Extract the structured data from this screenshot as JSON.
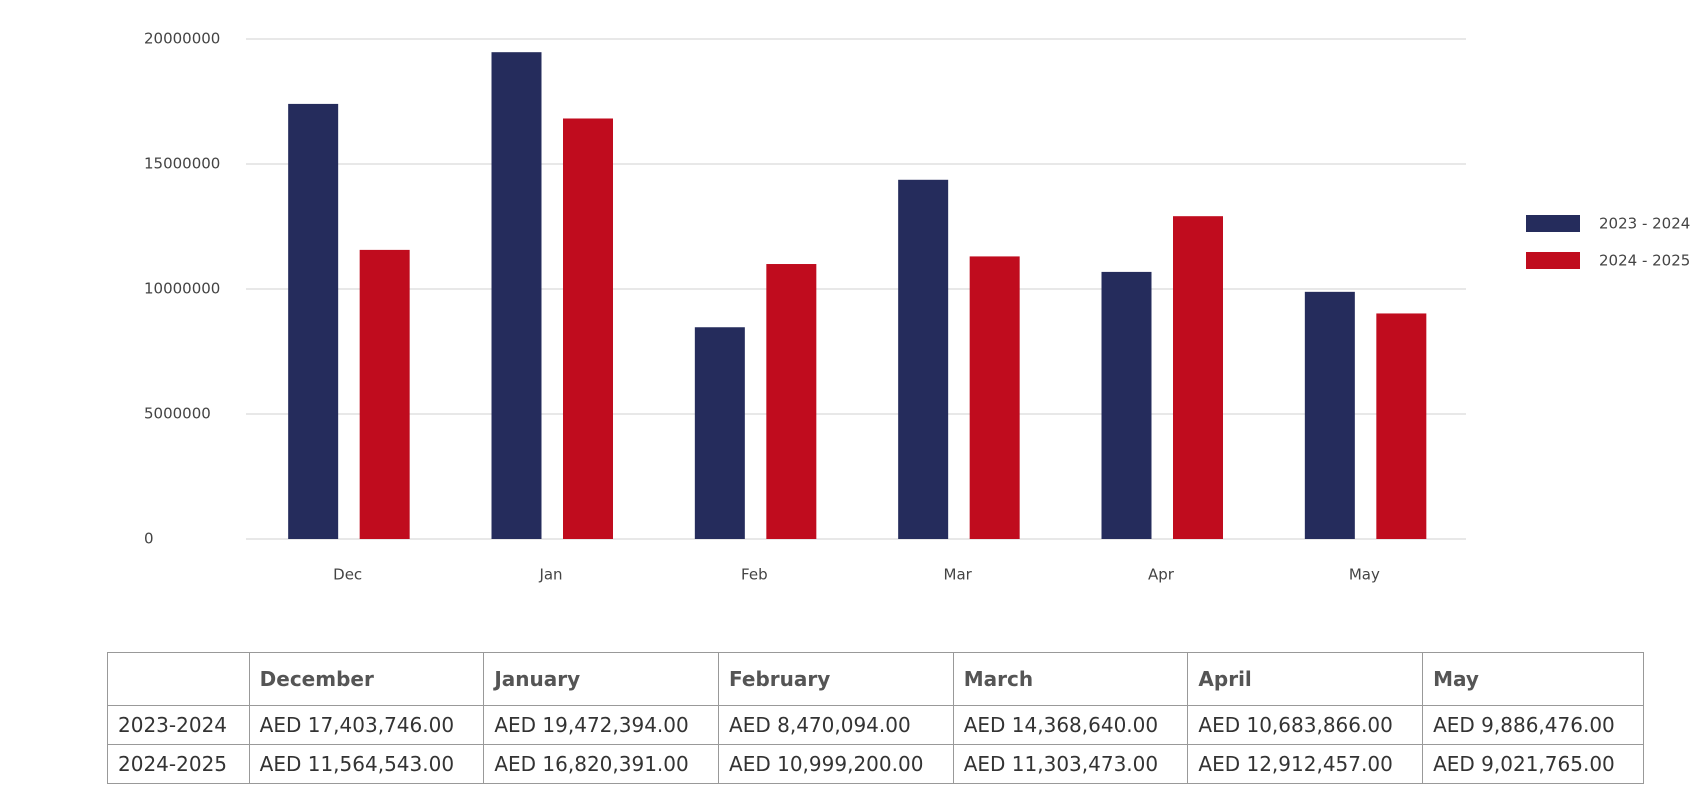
{
  "chart_data": {
    "type": "bar",
    "categories": [
      "Dec",
      "Jan",
      "Feb",
      "Mar",
      "Apr",
      "May"
    ],
    "series": [
      {
        "name": "2023 - 2024",
        "color": "#252c5c",
        "values": [
          17403746,
          19472394,
          8470094,
          14368640,
          10683866,
          9886476
        ]
      },
      {
        "name": "2024 - 2025",
        "color": "#c00c1e",
        "values": [
          11564543,
          16820391,
          10999200,
          11303473,
          12912457,
          9021765
        ]
      }
    ],
    "ylim": [
      0,
      20000000
    ],
    "yticks": [
      0,
      5000000,
      10000000,
      15000000,
      20000000
    ],
    "grid": true,
    "legend": "right"
  },
  "table": {
    "header": [
      "December",
      "January",
      "February",
      "March",
      "April",
      "May"
    ],
    "rows": [
      [
        "2023-2024",
        "AED 17,403,746.00",
        "AED 19,472,394.00",
        "AED 8,470,094.00",
        "AED 14,368,640.00",
        "AED 10,683,866.00",
        "AED 9,886,476.00"
      ],
      [
        "2024-2025",
        "AED 11,564,543.00",
        "AED 16,820,391.00",
        "AED 10,999,200.00",
        "AED 11,303,473.00",
        "AED 12,912,457.00",
        "AED 9,021,765.00"
      ]
    ]
  }
}
